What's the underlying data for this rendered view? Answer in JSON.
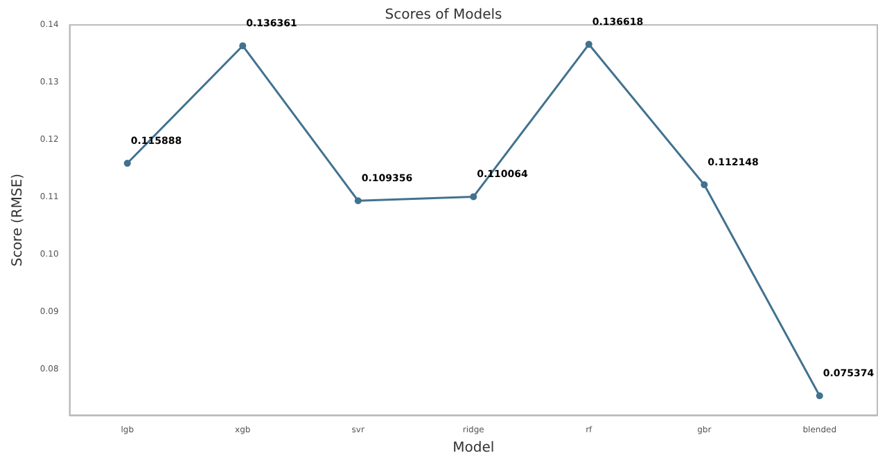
{
  "chart_data": {
    "type": "line",
    "title": "Scores of Models",
    "xlabel": "Model",
    "ylabel": "Score (RMSE)",
    "categories": [
      "lgb",
      "xgb",
      "svr",
      "ridge",
      "rf",
      "gbr",
      "blended"
    ],
    "series": [
      {
        "color": "#41728f",
        "values": [
          0.115888,
          0.136361,
          0.109356,
          0.110064,
          0.136618,
          0.112148,
          0.075374
        ]
      }
    ],
    "ylim": [
      0.072,
      0.14
    ],
    "yticks": [
      0.08,
      0.09,
      {
        "value": 0.1,
        "label": "0.10"
      },
      0.11,
      0.12,
      0.13,
      0.14
    ],
    "data_labels": true,
    "marker": "circle",
    "line_style": "solid"
  }
}
